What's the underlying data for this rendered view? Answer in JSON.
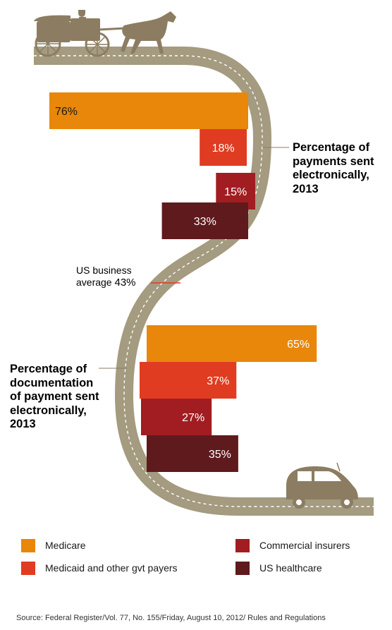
{
  "chart_data": [
    {
      "type": "bar",
      "orientation": "horizontal",
      "title": "Percentage of payments sent electronically, 2013",
      "categories": [
        "Medicare",
        "Medicaid and other gvt payers",
        "Commercial insurers",
        "US healthcare"
      ],
      "values": [
        76,
        18,
        15,
        33
      ],
      "value_labels": [
        "76%",
        "18%",
        "15%",
        "33%"
      ]
    },
    {
      "type": "bar",
      "orientation": "horizontal",
      "title": "Percentage of documentation of payment sent electronically, 2013",
      "categories": [
        "Medicare",
        "Medicaid and other gvt payers",
        "Commercial insurers",
        "US healthcare"
      ],
      "values": [
        65,
        37,
        27,
        35
      ],
      "value_labels": [
        "65%",
        "37%",
        "27%",
        "35%"
      ]
    }
  ],
  "labels": {
    "top_title_lines": [
      "Percentage of",
      "payments sent",
      "electronically,",
      "2013"
    ],
    "bottom_title_lines": [
      "Percentage of",
      "documentation",
      "of payment sent",
      "electronically,",
      "2013"
    ],
    "average_lines": [
      "US business",
      "average"
    ],
    "average_value": "43%"
  },
  "legend": [
    {
      "label": "Medicare",
      "color": "#e8870a"
    },
    {
      "label": "Medicaid and other gvt payers",
      "color": "#e03c22"
    },
    {
      "label": "Commercial insurers",
      "color": "#a11d21"
    },
    {
      "label": "US healthcare",
      "color": "#5e1a1d"
    }
  ],
  "colors": {
    "road": "#a49b80",
    "road_line": "#ffffff",
    "silhouette": "#8c7d62",
    "avg_line": "#e03c22"
  },
  "icons": [
    "horse-carriage-icon",
    "car-icon"
  ],
  "source": "Source: Federal Register/Vol. 77, No. 155/Friday, August 10, 2012/ Rules and Regulations"
}
